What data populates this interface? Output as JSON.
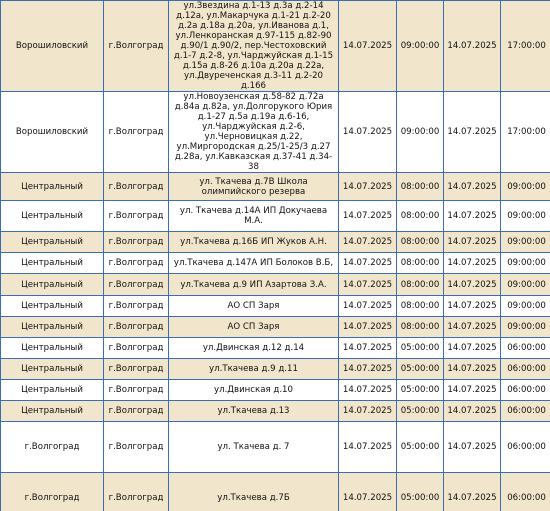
{
  "table": {
    "rows": [
      [
        "Ворошиловский",
        "г.Волгоград",
        "ул.Звездина д.1-13 д.3а д.2-14 д.12а, ул.Макарчука д.1-21 д.2-20 д.2а д.18а д.20а, ул.Иванова д.1, ул.Ленкоранская д.97-115 д.82-90 д.90/1 д.90/2, пер.Честоховский д.1-7 д.2-8, ул.Чарджуйская д.1-15 д.15а д.8-26 д.10а д.20а д.22а, ул.Двуреченская д.3-11 д.2-20 д.166",
        "14.07.2025",
        "09:00:00",
        "14.07.2025",
        "17:00:00"
      ],
      [
        "Ворошиловский",
        "г.Волгоград",
        "ул.Новоузенская д.58-82 д.72а д.84а д.82а, ул.Долгорукого Юрия д.1-27 д.5а д.19а д.6-16, ул.Чарджуйская д.2-6, ул.Черновицкая д.22, ул.Миргородская д.25/1-25/3 д.27 д.28а, ул.Кавказская д.37-41 д.34-38",
        "14.07.2025",
        "09:00:00",
        "14.07.2025",
        "17:00:00"
      ],
      [
        "Центральный",
        "г.Волгоград",
        "ул. Ткачева д.7В Школа олимпийского резерва",
        "14.07.2025",
        "08:00:00",
        "14.07.2025",
        "09:00:00"
      ],
      [
        "Центральный",
        "г.Волгоград",
        "ул. Ткачева д.14А ИП Докучаева М.А.",
        "14.07.2025",
        "08:00:00",
        "14.07.2025",
        "09:00:00"
      ],
      [
        "Центральный",
        "г.Волгоград",
        "ул.Ткачева д.16Б ИП Жуков А.Н.",
        "14.07.2025",
        "08:00:00",
        "14.07.2025",
        "09:00:00"
      ],
      [
        "Центральный",
        "г.Волгоград",
        "ул.Ткачева д.147А ИП Болоков В.Б,",
        "14.07.2025",
        "08:00:00",
        "14.07.2025",
        "09:00:00"
      ],
      [
        "Центральный",
        "г.Волгоград",
        "ул.Ткачева д.9 ИП Азартова З.А.",
        "14.07.2025",
        "08:00:00",
        "14.07.2025",
        "09:00:00"
      ],
      [
        "Центральный",
        "г.Волгоград",
        "АО СП Заря",
        "14.07.2025",
        "08:00:00",
        "14.07.2025",
        "09:00:00"
      ],
      [
        "Центральный",
        "г.Волгоград",
        "АО СП Заря",
        "14.07.2025",
        "08:00:00",
        "14.07.2025",
        "09:00:00"
      ],
      [
        "Центральный",
        "г.Волгоград",
        "ул.Двинская д.12 д.14",
        "14.07.2025",
        "05:00:00",
        "14.07.2025",
        "06:00:00"
      ],
      [
        "Центральный",
        "г.Волгоград",
        "ул.Ткачева д.9 д.11",
        "14.07.2025",
        "05:00:00",
        "14.07.2025",
        "06:00:00"
      ],
      [
        "Центральный",
        "г.Волгоград",
        "ул.Двинская д.10",
        "14.07.2025",
        "05:00:00",
        "14.07.2025",
        "06:00:00"
      ],
      [
        "Центральный",
        "г.Волгоград",
        "ул.Ткачева д.13",
        "14.07.2025",
        "05:00:00",
        "14.07.2025",
        "06:00:00"
      ],
      [
        "г.Волгоград",
        "г.Волгоград",
        "ул. Ткачева д. 7",
        "14.07.2025",
        "05:00:00",
        "14.07.2025",
        "06:00:00"
      ],
      [
        "г.Волгоград",
        "г.Волгоград",
        "ул.Ткачева д.7Б",
        "14.07.2025",
        "05:00:00",
        "14.07.2025",
        "06:00:00"
      ]
    ]
  }
}
